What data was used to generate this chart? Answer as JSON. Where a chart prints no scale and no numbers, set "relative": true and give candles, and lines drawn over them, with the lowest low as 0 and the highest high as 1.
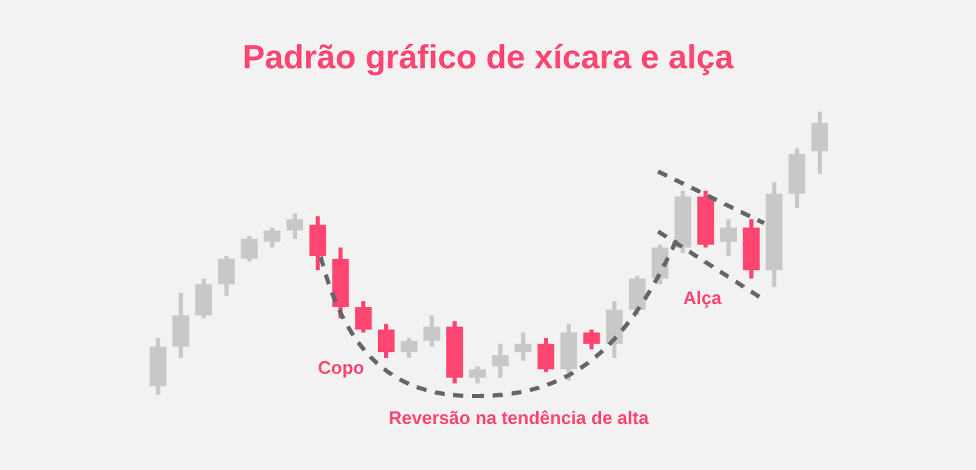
{
  "chart_data": {
    "type": "candlestick",
    "title": "Padrão gráfico de xícara e alça",
    "relative": true,
    "categories": [
      null,
      null,
      null,
      null,
      null,
      null,
      null,
      null,
      null,
      null,
      null,
      null,
      null,
      null,
      null,
      null,
      null,
      null,
      null,
      null,
      null,
      null,
      null,
      null,
      null,
      null,
      null,
      null,
      null,
      null
    ],
    "ohlc": [
      [
        0.03,
        0.2,
        0,
        0.17
      ],
      [
        0.17,
        0.36,
        0.13,
        0.28
      ],
      [
        0.28,
        0.41,
        0.27,
        0.39
      ],
      [
        0.39,
        0.49,
        0.35,
        0.48
      ],
      [
        0.48,
        0.56,
        0.47,
        0.55
      ],
      [
        0.54,
        0.59,
        0.52,
        0.58
      ],
      [
        0.58,
        0.64,
        0.55,
        0.62
      ],
      [
        0.6,
        0.63,
        0.44,
        0.49
      ],
      [
        0.48,
        0.52,
        0.27,
        0.31
      ],
      [
        0.31,
        0.33,
        0.22,
        0.23
      ],
      [
        0.23,
        0.25,
        0.13,
        0.15
      ],
      [
        0.15,
        0.2,
        0.13,
        0.19
      ],
      [
        0.19,
        0.28,
        0.17,
        0.24
      ],
      [
        0.24,
        0.26,
        0.04,
        0.06
      ],
      [
        0.06,
        0.1,
        0.04,
        0.09
      ],
      [
        0.1,
        0.18,
        0.06,
        0.14
      ],
      [
        0.15,
        0.22,
        0.12,
        0.18
      ],
      [
        0.18,
        0.2,
        0.08,
        0.09
      ],
      [
        0.09,
        0.25,
        0.05,
        0.22
      ],
      [
        0.22,
        0.23,
        0.16,
        0.18
      ],
      [
        0.18,
        0.33,
        0.13,
        0.3
      ],
      [
        0.3,
        0.42,
        0.28,
        0.41
      ],
      [
        0.41,
        0.53,
        0.39,
        0.52
      ],
      [
        0.52,
        0.72,
        0.5,
        0.7
      ],
      [
        0.7,
        0.72,
        0.52,
        0.53
      ],
      [
        0.54,
        0.62,
        0.49,
        0.59
      ],
      [
        0.59,
        0.62,
        0.41,
        0.44
      ],
      [
        0.44,
        0.75,
        0.38,
        0.71
      ],
      [
        0.71,
        0.87,
        0.66,
        0.85
      ],
      [
        0.86,
        1,
        0.78,
        0.96
      ]
    ],
    "colors": [
      "#c8c8c8",
      "#c8c8c8",
      "#c8c8c8",
      "#c8c8c8",
      "#c8c8c8",
      "#c8c8c8",
      "#c8c8c8",
      "#ff4571",
      "#ff4571",
      "#ff4571",
      "#ff4571",
      "#c8c8c8",
      "#c8c8c8",
      "#ff4571",
      "#c8c8c8",
      "#c8c8c8",
      "#c8c8c8",
      "#ff4571",
      "#c8c8c8",
      "#ff4571",
      "#c8c8c8",
      "#c8c8c8",
      "#c8c8c8",
      "#c8c8c8",
      "#ff4571",
      "#c8c8c8",
      "#ff4571",
      "#c8c8c8",
      "#c8c8c8",
      "#c8c8c8"
    ],
    "annotations": [
      "Copo",
      "Reversão na tendência de alta",
      "Alça"
    ]
  }
}
